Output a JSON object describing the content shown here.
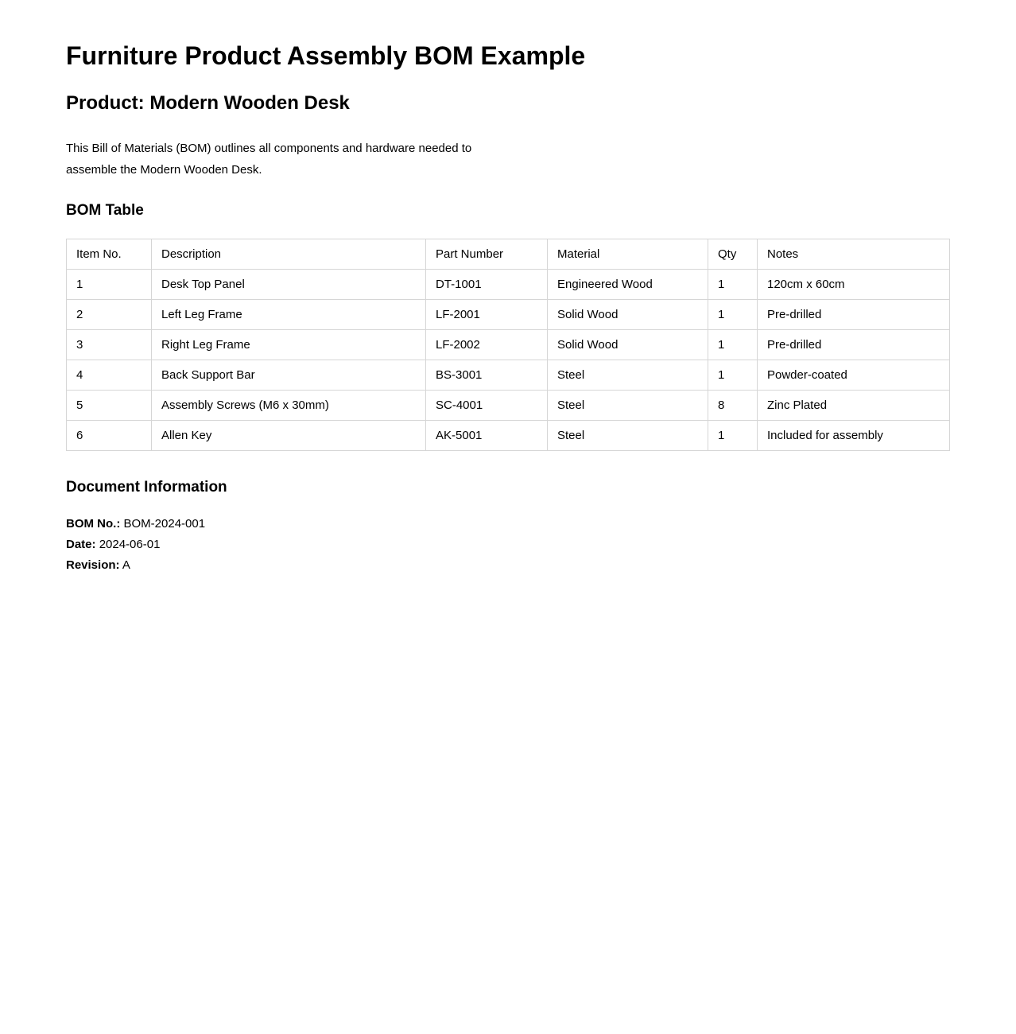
{
  "page": {
    "title": "Furniture Product Assembly BOM Example",
    "subtitle": "Product: Modern Wooden Desk",
    "intro": "This Bill of Materials (BOM) outlines all components and hardware needed to assemble the Modern Wooden Desk."
  },
  "bom_table": {
    "heading": "BOM Table",
    "columns": [
      "Item No.",
      "Description",
      "Part Number",
      "Material",
      "Qty",
      "Notes"
    ],
    "rows": [
      [
        "1",
        "Desk Top Panel",
        "DT-1001",
        "Engineered Wood",
        "1",
        "120cm x 60cm"
      ],
      [
        "2",
        "Left Leg Frame",
        "LF-2001",
        "Solid Wood",
        "1",
        "Pre-drilled"
      ],
      [
        "3",
        "Right Leg Frame",
        "LF-2002",
        "Solid Wood",
        "1",
        "Pre-drilled"
      ],
      [
        "4",
        "Back Support Bar",
        "BS-3001",
        "Steel",
        "1",
        "Powder-coated"
      ],
      [
        "5",
        "Assembly Screws (M6 x 30mm)",
        "SC-4001",
        "Steel",
        "8",
        "Zinc Plated"
      ],
      [
        "6",
        "Allen Key",
        "AK-5001",
        "Steel",
        "1",
        "Included for assembly"
      ]
    ]
  },
  "document_info": {
    "heading": "Document Information",
    "fields": [
      {
        "label": "BOM No.:",
        "value": "BOM-2024-001"
      },
      {
        "label": "Date:",
        "value": "2024-06-01"
      },
      {
        "label": "Revision:",
        "value": "A"
      }
    ]
  },
  "colors": {
    "background": "#ffffff",
    "text": "#000000",
    "table_border": "#d6d6d6"
  }
}
